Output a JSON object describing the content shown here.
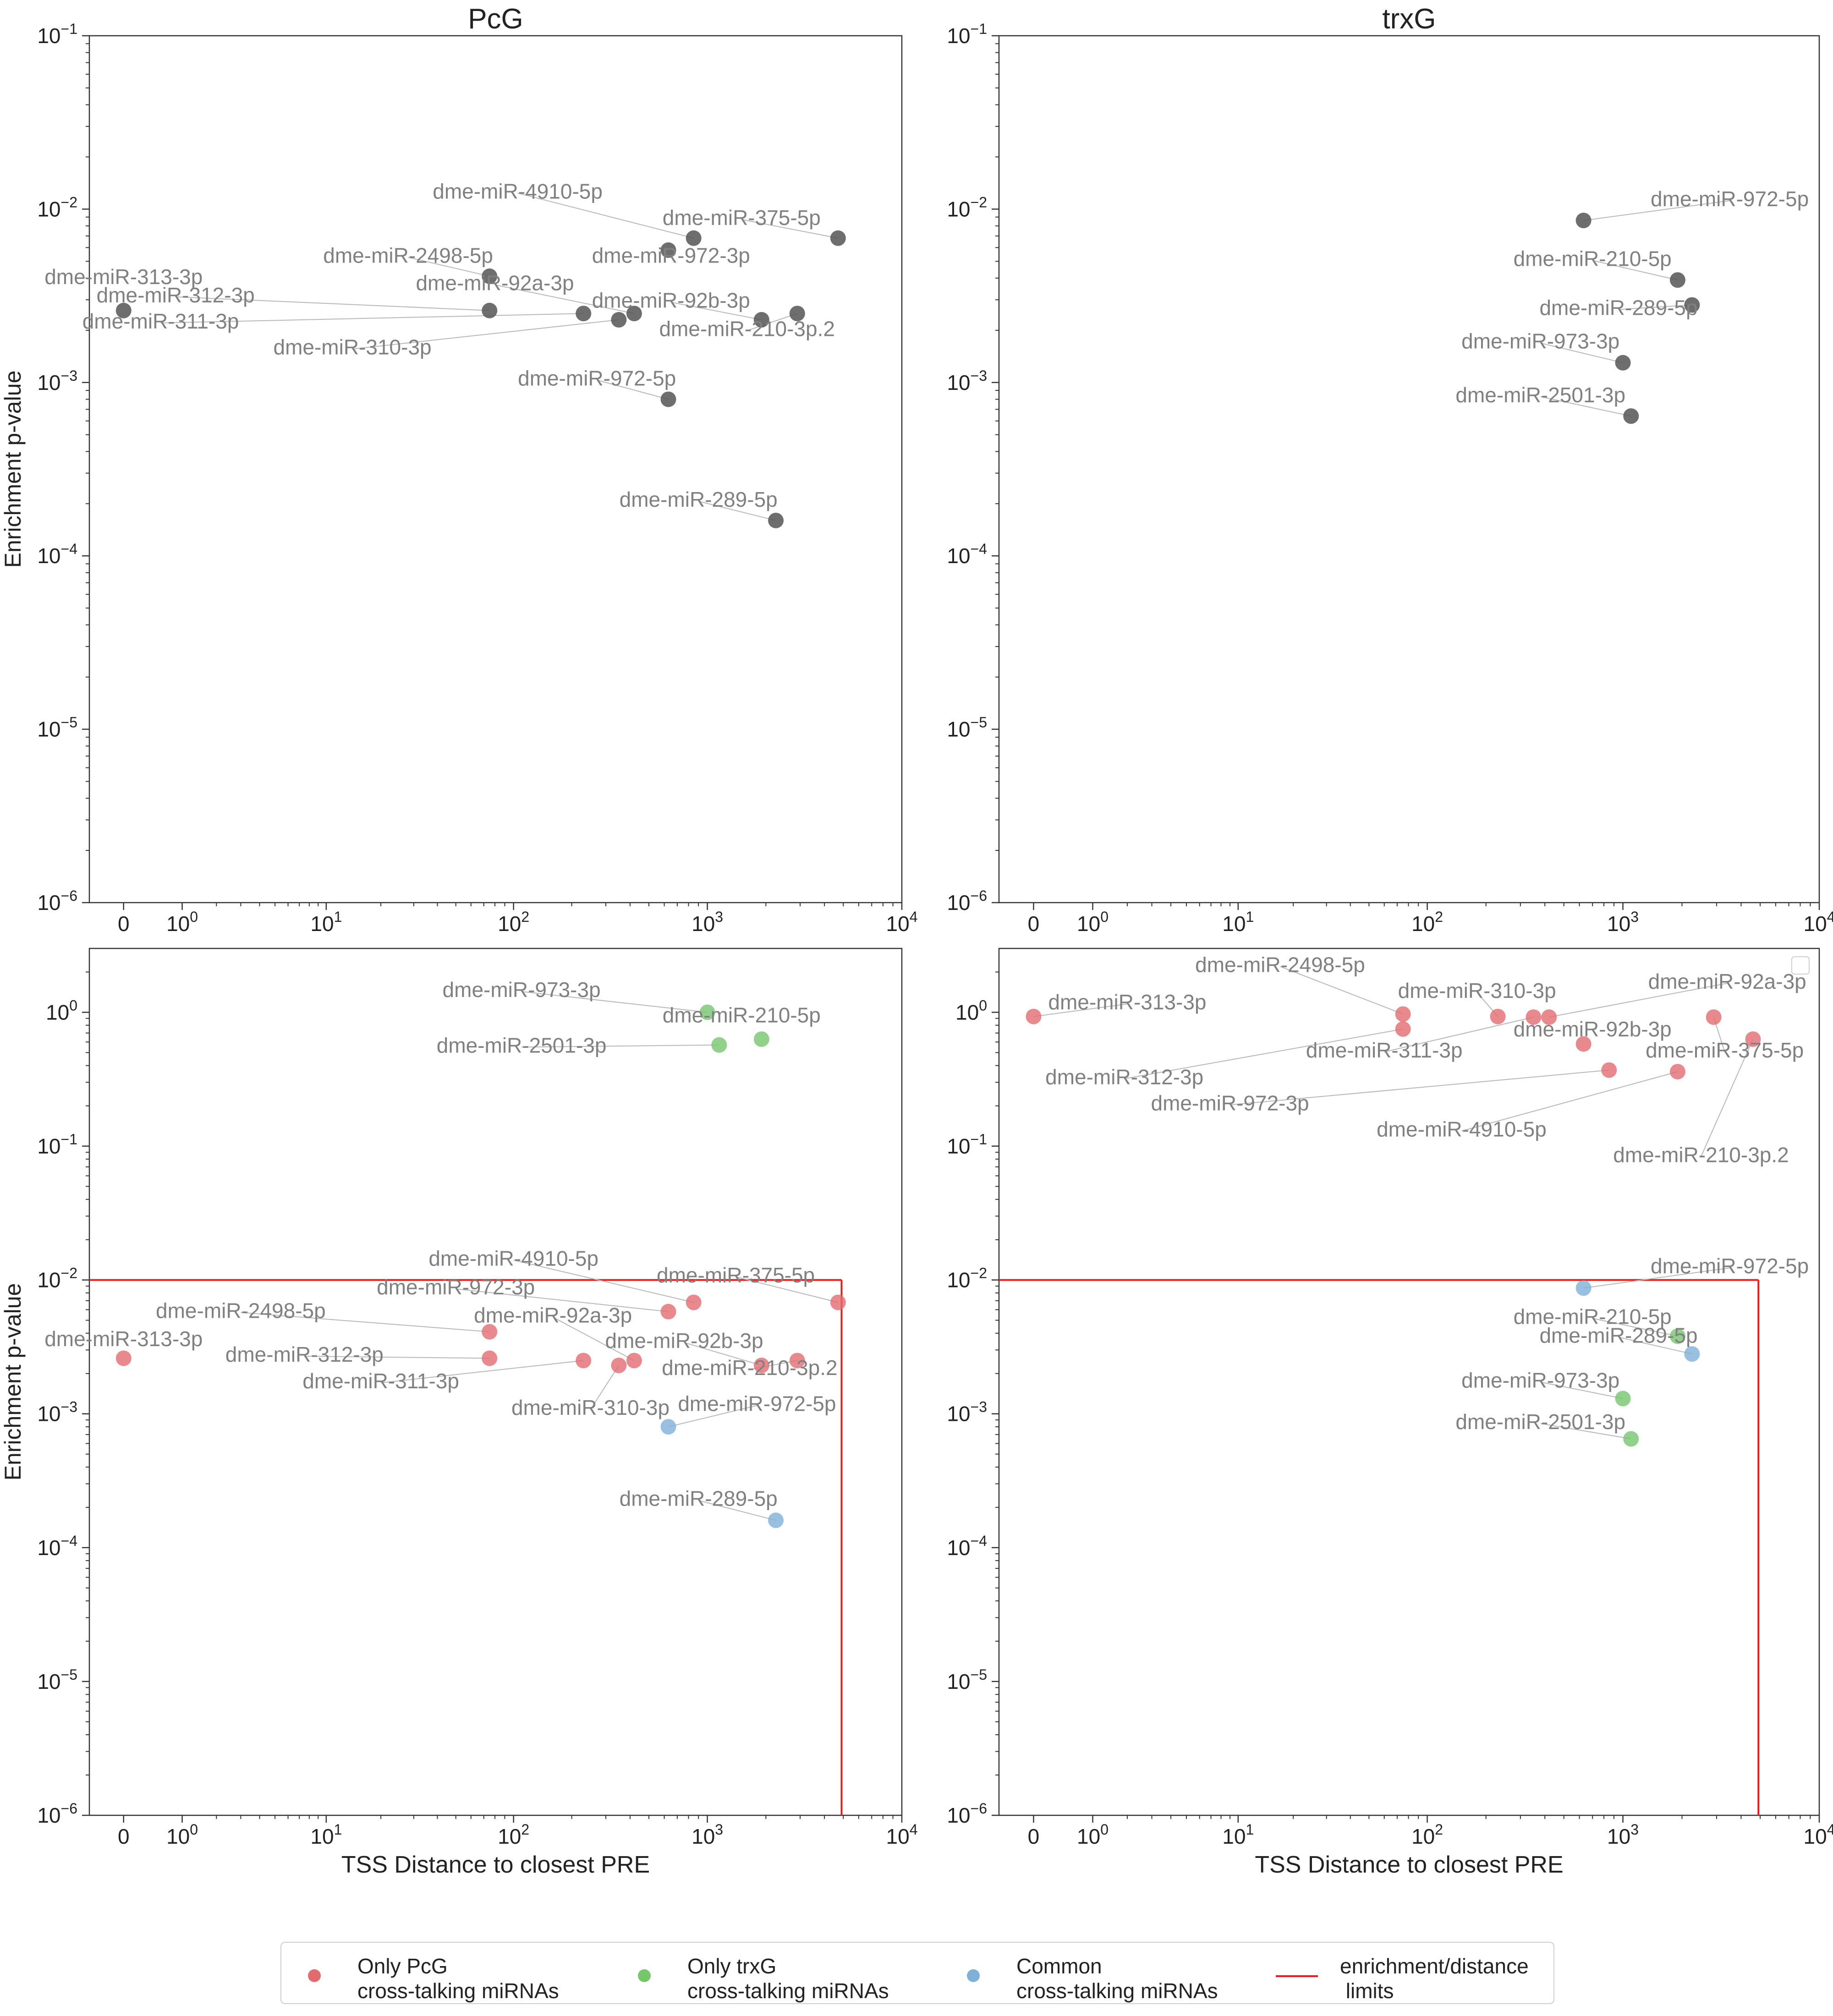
{
  "colors": {
    "gray": "#555555",
    "pcg": "#e26b70",
    "trxg": "#76c66e",
    "common": "#7fb0d8",
    "limit": "#e02020",
    "label": "#808080",
    "leader": "#b8b8b8"
  },
  "chart_data": [
    {
      "type": "scatter",
      "panel": "top-left",
      "title": "PcG",
      "xlabel": "",
      "ylabel": "Enrichment p-value",
      "xscale": "symlog",
      "yscale": "log",
      "xlim": [
        -0.5,
        10000
      ],
      "ylim": [
        1e-06,
        0.1
      ],
      "xticks": [
        {
          "v": 0,
          "base": "0",
          "exp": ""
        },
        {
          "v": 1,
          "base": "10",
          "exp": "0"
        },
        {
          "v": 10,
          "base": "10",
          "exp": "1"
        },
        {
          "v": 100,
          "base": "10",
          "exp": "2"
        },
        {
          "v": 1000,
          "base": "10",
          "exp": "3"
        },
        {
          "v": 10000,
          "base": "10",
          "exp": "4"
        }
      ],
      "yticks": [
        {
          "v": 1e-06,
          "base": "10",
          "exp": "−6"
        },
        {
          "v": 1e-05,
          "base": "10",
          "exp": "−5"
        },
        {
          "v": 0.0001,
          "base": "10",
          "exp": "−4"
        },
        {
          "v": 0.001,
          "base": "10",
          "exp": "−3"
        },
        {
          "v": 0.01,
          "base": "10",
          "exp": "−2"
        },
        {
          "v": 0.1,
          "base": "10",
          "exp": "−1"
        }
      ],
      "limit_lines": false,
      "points": [
        {
          "label": "dme-miR-313-3p",
          "x": 0,
          "y": 0.0026,
          "group": "gray",
          "lx": 0,
          "ly": 0.0037,
          "anchor": "middle"
        },
        {
          "label": "dme-miR-312-3p",
          "x": 75,
          "y": 0.0026,
          "group": "gray",
          "lx": 0.85,
          "ly": 0.0029,
          "anchor": "middle"
        },
        {
          "label": "dme-miR-311-3p",
          "x": 230,
          "y": 0.0025,
          "group": "gray",
          "lx": 0.55,
          "ly": 0.00205,
          "anchor": "middle"
        },
        {
          "label": "dme-miR-310-3p",
          "x": 350,
          "y": 0.0023,
          "group": "gray",
          "lx": 14,
          "ly": 0.00145,
          "anchor": "middle"
        },
        {
          "label": "dme-miR-2498-5p",
          "x": 75,
          "y": 0.0041,
          "group": "gray",
          "lx": 28,
          "ly": 0.0049,
          "anchor": "middle"
        },
        {
          "label": "dme-miR-92a-3p",
          "x": 420,
          "y": 0.0025,
          "group": "gray",
          "lx": 80,
          "ly": 0.0034,
          "anchor": "middle"
        },
        {
          "label": "dme-miR-92b-3p",
          "x": 1900,
          "y": 0.0023,
          "group": "gray",
          "lx": 650,
          "ly": 0.0027,
          "anchor": "middle"
        },
        {
          "label": "dme-miR-210-3p.2",
          "x": 2900,
          "y": 0.0025,
          "group": "gray",
          "lx": 1600,
          "ly": 0.00185,
          "anchor": "middle"
        },
        {
          "label": "dme-miR-4910-5p",
          "x": 850,
          "y": 0.0068,
          "group": "gray",
          "lx": 105,
          "ly": 0.0115,
          "anchor": "middle"
        },
        {
          "label": "dme-miR-375-5p",
          "x": 4700,
          "y": 0.0068,
          "group": "gray",
          "lx": 1500,
          "ly": 0.0081,
          "anchor": "middle"
        },
        {
          "label": "dme-miR-972-3p",
          "x": 630,
          "y": 0.0058,
          "group": "gray",
          "lx": 650,
          "ly": 0.0049,
          "anchor": "middle"
        },
        {
          "label": "dme-miR-972-5p",
          "x": 630,
          "y": 0.0008,
          "group": "gray",
          "lx": 270,
          "ly": 0.00096,
          "anchor": "middle"
        },
        {
          "label": "dme-miR-289-5p",
          "x": 2250,
          "y": 0.00016,
          "group": "gray",
          "lx": 900,
          "ly": 0.000192,
          "anchor": "middle"
        }
      ]
    },
    {
      "type": "scatter",
      "panel": "top-right",
      "title": "trxG",
      "xlabel": "",
      "ylabel": "",
      "xscale": "symlog",
      "yscale": "log",
      "xlim": [
        -0.5,
        10000
      ],
      "ylim": [
        1e-06,
        0.1
      ],
      "xticks": [
        {
          "v": 0,
          "base": "0",
          "exp": ""
        },
        {
          "v": 1,
          "base": "10",
          "exp": "0"
        },
        {
          "v": 10,
          "base": "10",
          "exp": "1"
        },
        {
          "v": 100,
          "base": "10",
          "exp": "2"
        },
        {
          "v": 1000,
          "base": "10",
          "exp": "3"
        },
        {
          "v": 10000,
          "base": "10",
          "exp": "4"
        }
      ],
      "yticks": [
        {
          "v": 1e-06,
          "base": "10",
          "exp": "−6"
        },
        {
          "v": 1e-05,
          "base": "10",
          "exp": "−5"
        },
        {
          "v": 0.0001,
          "base": "10",
          "exp": "−4"
        },
        {
          "v": 0.001,
          "base": "10",
          "exp": "−3"
        },
        {
          "v": 0.01,
          "base": "10",
          "exp": "−2"
        },
        {
          "v": 0.1,
          "base": "10",
          "exp": "−1"
        }
      ],
      "limit_lines": false,
      "points": [
        {
          "label": "dme-miR-972-5p",
          "x": 630,
          "y": 0.0086,
          "group": "gray",
          "lx": 3500,
          "ly": 0.0104,
          "anchor": "middle"
        },
        {
          "label": "dme-miR-210-5p",
          "x": 1900,
          "y": 0.0039,
          "group": "gray",
          "lx": 700,
          "ly": 0.0047,
          "anchor": "middle"
        },
        {
          "label": "dme-miR-289-5p",
          "x": 2250,
          "y": 0.0028,
          "group": "gray",
          "lx": 950,
          "ly": 0.00245,
          "anchor": "middle"
        },
        {
          "label": "dme-miR-973-3p",
          "x": 1000,
          "y": 0.0013,
          "group": "gray",
          "lx": 380,
          "ly": 0.00157,
          "anchor": "middle"
        },
        {
          "label": "dme-miR-2501-3p",
          "x": 1100,
          "y": 0.00064,
          "group": "gray",
          "lx": 380,
          "ly": 0.00077,
          "anchor": "middle"
        }
      ]
    },
    {
      "type": "scatter",
      "panel": "bottom-left",
      "title": "",
      "xlabel": "TSS Distance to closest PRE",
      "ylabel": "Enrichment p-value",
      "xscale": "symlog",
      "yscale": "log",
      "xlim": [
        -0.5,
        10000
      ],
      "ylim": [
        1e-06,
        3
      ],
      "xticks": [
        {
          "v": 0,
          "base": "0",
          "exp": ""
        },
        {
          "v": 1,
          "base": "10",
          "exp": "0"
        },
        {
          "v": 10,
          "base": "10",
          "exp": "1"
        },
        {
          "v": 100,
          "base": "10",
          "exp": "2"
        },
        {
          "v": 1000,
          "base": "10",
          "exp": "3"
        },
        {
          "v": 10000,
          "base": "10",
          "exp": "4"
        }
      ],
      "yticks": [
        {
          "v": 1e-06,
          "base": "10",
          "exp": "−6"
        },
        {
          "v": 1e-05,
          "base": "10",
          "exp": "−5"
        },
        {
          "v": 0.0001,
          "base": "10",
          "exp": "−4"
        },
        {
          "v": 0.001,
          "base": "10",
          "exp": "−3"
        },
        {
          "v": 0.01,
          "base": "10",
          "exp": "−2"
        },
        {
          "v": 0.1,
          "base": "10",
          "exp": "−1"
        },
        {
          "v": 1,
          "base": "10",
          "exp": "0"
        }
      ],
      "limit_lines": true,
      "limit_x": 4900,
      "limit_y": 0.01,
      "points": [
        {
          "label": "dme-miR-973-3p",
          "x": 1000,
          "y": 1.0,
          "group": "trxg",
          "lx": 110,
          "ly": 1.3,
          "anchor": "middle"
        },
        {
          "label": "dme-miR-210-5p",
          "x": 1900,
          "y": 0.63,
          "group": "trxg",
          "lx": 1500,
          "ly": 0.84,
          "anchor": "middle"
        },
        {
          "label": "dme-miR-2501-3p",
          "x": 1150,
          "y": 0.57,
          "group": "trxg",
          "lx": 110,
          "ly": 0.5,
          "anchor": "middle"
        },
        {
          "label": "dme-miR-4910-5p",
          "x": 850,
          "y": 0.0068,
          "group": "pcg",
          "lx": 100,
          "ly": 0.0128,
          "anchor": "middle"
        },
        {
          "label": "dme-miR-375-5p",
          "x": 4700,
          "y": 0.0068,
          "group": "pcg",
          "lx": 1400,
          "ly": 0.0096,
          "anchor": "middle"
        },
        {
          "label": "dme-miR-972-3p",
          "x": 630,
          "y": 0.0058,
          "group": "pcg",
          "lx": 50,
          "ly": 0.0078,
          "anchor": "middle"
        },
        {
          "label": "dme-miR-2498-5p",
          "x": 75,
          "y": 0.0041,
          "group": "pcg",
          "lx": 3,
          "ly": 0.0052,
          "anchor": "middle"
        },
        {
          "label": "dme-miR-92a-3p",
          "x": 420,
          "y": 0.0025,
          "group": "pcg",
          "lx": 160,
          "ly": 0.0048,
          "anchor": "middle"
        },
        {
          "label": "dme-miR-313-3p",
          "x": 0,
          "y": 0.0026,
          "group": "pcg",
          "lx": 0,
          "ly": 0.0032,
          "anchor": "middle"
        },
        {
          "label": "dme-miR-312-3p",
          "x": 75,
          "y": 0.0026,
          "group": "pcg",
          "lx": 7.5,
          "ly": 0.00245,
          "anchor": "middle"
        },
        {
          "label": "dme-miR-311-3p",
          "x": 230,
          "y": 0.0025,
          "group": "pcg",
          "lx": 20,
          "ly": 0.00155,
          "anchor": "middle"
        },
        {
          "label": "dme-miR-92b-3p",
          "x": 1900,
          "y": 0.0023,
          "group": "pcg",
          "lx": 760,
          "ly": 0.0031,
          "anchor": "middle"
        },
        {
          "label": "dme-miR-210-3p.2",
          "x": 2900,
          "y": 0.0025,
          "group": "pcg",
          "lx": 1650,
          "ly": 0.00195,
          "anchor": "middle"
        },
        {
          "label": "dme-miR-310-3p",
          "x": 350,
          "y": 0.0023,
          "group": "pcg",
          "lx": 250,
          "ly": 0.00098,
          "anchor": "middle"
        },
        {
          "label": "dme-miR-972-5p",
          "x": 630,
          "y": 0.0008,
          "group": "common",
          "lx": 1800,
          "ly": 0.00105,
          "anchor": "middle"
        },
        {
          "label": "dme-miR-289-5p",
          "x": 2250,
          "y": 0.00016,
          "group": "common",
          "lx": 900,
          "ly": 0.000205,
          "anchor": "middle"
        }
      ]
    },
    {
      "type": "scatter",
      "panel": "bottom-right",
      "title": "",
      "xlabel": "TSS Distance to closest PRE",
      "ylabel": "",
      "xscale": "symlog",
      "yscale": "log",
      "xlim": [
        -0.5,
        10000
      ],
      "ylim": [
        1e-06,
        3
      ],
      "xticks": [
        {
          "v": 0,
          "base": "0",
          "exp": ""
        },
        {
          "v": 1,
          "base": "10",
          "exp": "0"
        },
        {
          "v": 10,
          "base": "10",
          "exp": "1"
        },
        {
          "v": 100,
          "base": "10",
          "exp": "2"
        },
        {
          "v": 1000,
          "base": "10",
          "exp": "3"
        },
        {
          "v": 10000,
          "base": "10",
          "exp": "4"
        }
      ],
      "yticks": [
        {
          "v": 1e-06,
          "base": "10",
          "exp": "−6"
        },
        {
          "v": 1e-05,
          "base": "10",
          "exp": "−5"
        },
        {
          "v": 0.0001,
          "base": "10",
          "exp": "−4"
        },
        {
          "v": 0.001,
          "base": "10",
          "exp": "−3"
        },
        {
          "v": 0.01,
          "base": "10",
          "exp": "−2"
        },
        {
          "v": 0.1,
          "base": "10",
          "exp": "−1"
        },
        {
          "v": 1,
          "base": "10",
          "exp": "0"
        }
      ],
      "limit_lines": true,
      "limit_x": 4900,
      "limit_y": 0.01,
      "points": [
        {
          "label": "dme-miR-313-3p",
          "x": 0,
          "y": 0.93,
          "group": "pcg",
          "lx": 2.0,
          "ly": 1.05,
          "anchor": "middle"
        },
        {
          "label": "dme-miR-2498-5p",
          "x": 75,
          "y": 0.97,
          "group": "pcg",
          "lx": 17,
          "ly": 2.0,
          "anchor": "middle"
        },
        {
          "label": "dme-miR-310-3p",
          "x": 230,
          "y": 0.93,
          "group": "pcg",
          "lx": 180,
          "ly": 1.28,
          "anchor": "middle"
        },
        {
          "label": "dme-miR-92a-3p",
          "x": 420,
          "y": 0.92,
          "group": "pcg",
          "lx": 3400,
          "ly": 1.5,
          "anchor": "middle"
        },
        {
          "label": "dme-miR-312-3p",
          "x": 75,
          "y": 0.75,
          "group": "pcg",
          "lx": 1.9,
          "ly": 0.29,
          "anchor": "middle"
        },
        {
          "label": "dme-miR-311-3p",
          "x": 350,
          "y": 0.92,
          "group": "pcg",
          "lx": 60,
          "ly": 0.46,
          "anchor": "middle"
        },
        {
          "label": "dme-miR-92b-3p",
          "x": 630,
          "y": 0.58,
          "group": "pcg",
          "lx": 700,
          "ly": 0.66,
          "anchor": "middle"
        },
        {
          "label": "dme-miR-972-3p",
          "x": 850,
          "y": 0.37,
          "group": "pcg",
          "lx": 9,
          "ly": 0.185,
          "anchor": "middle"
        },
        {
          "label": "dme-miR-375-5p",
          "x": 2900,
          "y": 0.92,
          "group": "pcg",
          "lx": 3300,
          "ly": 0.46,
          "anchor": "middle"
        },
        {
          "label": "dme-miR-4910-5p",
          "x": 1900,
          "y": 0.36,
          "group": "pcg",
          "lx": 150,
          "ly": 0.118,
          "anchor": "middle"
        },
        {
          "label": "dme-miR-210-3p.2",
          "x": 4600,
          "y": 0.63,
          "group": "pcg",
          "lx": 2500,
          "ly": 0.076,
          "anchor": "middle"
        },
        {
          "label": "dme-miR-972-5p",
          "x": 630,
          "y": 0.0087,
          "group": "common",
          "lx": 3500,
          "ly": 0.0112,
          "anchor": "middle"
        },
        {
          "label": "dme-miR-210-5p",
          "x": 1900,
          "y": 0.0038,
          "group": "trxg",
          "lx": 700,
          "ly": 0.0047,
          "anchor": "middle"
        },
        {
          "label": "dme-miR-289-5p",
          "x": 2250,
          "y": 0.0028,
          "group": "common",
          "lx": 950,
          "ly": 0.0034,
          "anchor": "middle"
        },
        {
          "label": "dme-miR-973-3p",
          "x": 1000,
          "y": 0.0013,
          "group": "trxg",
          "lx": 380,
          "ly": 0.00157,
          "anchor": "middle"
        },
        {
          "label": "dme-miR-2501-3p",
          "x": 1100,
          "y": 0.00065,
          "group": "trxg",
          "lx": 380,
          "ly": 0.00077,
          "anchor": "middle"
        }
      ]
    }
  ],
  "legend": {
    "items": [
      {
        "label": "Only PcG\ncross-talking miRNAs",
        "group": "pcg",
        "kind": "marker"
      },
      {
        "label": "Only trxG\ncross-talking miRNAs",
        "group": "trxg",
        "kind": "marker"
      },
      {
        "label": "Common\ncross-talking miRNAs",
        "group": "common",
        "kind": "marker"
      },
      {
        "label": "enrichment/distance\n limits",
        "group": "limit",
        "kind": "line"
      }
    ]
  }
}
